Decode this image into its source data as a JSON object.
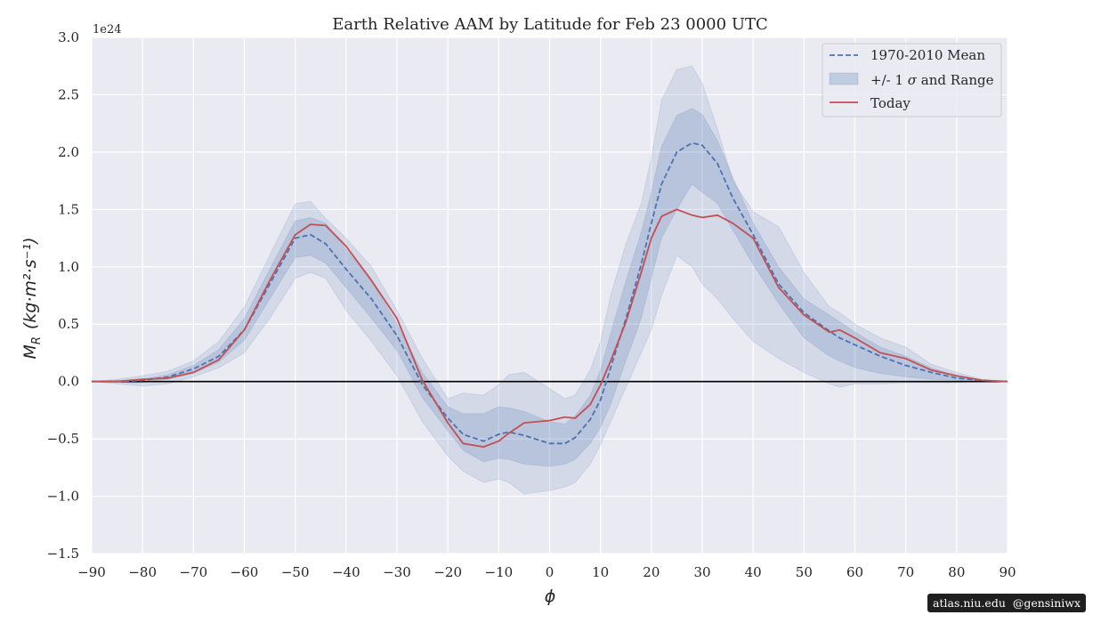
{
  "chart_data": {
    "type": "line",
    "title": "Earth Relative AAM by Latitude for Feb 23 0000 UTC",
    "xlabel": "ϕ",
    "ylabel_main": "M",
    "ylabel_sub": "R",
    "ylabel_units": "(kg·m²·s⁻¹)",
    "y_offset_text": "1e24",
    "xlim": [
      -90,
      90
    ],
    "ylim": [
      -1.5,
      3.0
    ],
    "x_ticks": [
      -90,
      -80,
      -70,
      -60,
      -50,
      -40,
      -30,
      -20,
      -10,
      0,
      10,
      20,
      30,
      40,
      50,
      60,
      70,
      80,
      90
    ],
    "x_tick_labels": [
      "−90",
      "−80",
      "−70",
      "−60",
      "−50",
      "−40",
      "−30",
      "−20",
      "−10",
      "0",
      "10",
      "20",
      "30",
      "40",
      "50",
      "60",
      "70",
      "80",
      "90"
    ],
    "y_ticks": [
      -1.5,
      -1.0,
      -0.5,
      0.0,
      0.5,
      1.0,
      1.5,
      2.0,
      2.5,
      3.0
    ],
    "y_tick_labels": [
      "−1.5",
      "−1.0",
      "−0.5",
      "0.0",
      "0.5",
      "1.0",
      "1.5",
      "2.0",
      "2.5",
      "3.0"
    ],
    "grid": true,
    "zero_line": true,
    "legend_position": "upper right",
    "legend": [
      {
        "label": "1970-2010 Mean",
        "style": "dashed-line",
        "color": "#4c72b0"
      },
      {
        "label_pre": "+/- 1 ",
        "label_sigma": "σ",
        "label_post": " and Range",
        "style": "band",
        "color": "#4c72b0"
      },
      {
        "label": "Today",
        "style": "solid-line",
        "color": "#c44e52"
      }
    ],
    "x": [
      -90,
      -85,
      -80,
      -75,
      -70,
      -65,
      -60,
      -55,
      -50,
      -47,
      -44,
      -40,
      -35,
      -30,
      -25,
      -20,
      -17,
      -13,
      -10,
      -8,
      -5,
      0,
      3,
      5,
      8,
      10,
      12,
      15,
      18,
      20,
      22,
      25,
      28,
      30,
      33,
      36,
      40,
      45,
      50,
      55,
      57,
      60,
      65,
      70,
      75,
      80,
      85,
      90
    ],
    "series": [
      {
        "name": "1970-2010 Mean",
        "style": "dashed",
        "color": "#4c72b0",
        "values": [
          0.0,
          0.0,
          0.01,
          0.04,
          0.11,
          0.22,
          0.45,
          0.85,
          1.25,
          1.28,
          1.2,
          0.98,
          0.72,
          0.4,
          -0.03,
          -0.32,
          -0.46,
          -0.52,
          -0.46,
          -0.44,
          -0.47,
          -0.54,
          -0.54,
          -0.49,
          -0.33,
          -0.16,
          0.12,
          0.55,
          1.02,
          1.38,
          1.72,
          2.0,
          2.08,
          2.06,
          1.9,
          1.6,
          1.28,
          0.85,
          0.6,
          0.44,
          0.38,
          0.32,
          0.22,
          0.14,
          0.08,
          0.03,
          0.01,
          0.0
        ]
      },
      {
        "name": "Today",
        "style": "solid",
        "color": "#c44e52",
        "values": [
          0.0,
          0.0,
          0.02,
          0.03,
          0.08,
          0.19,
          0.45,
          0.88,
          1.28,
          1.37,
          1.36,
          1.18,
          0.88,
          0.55,
          0.01,
          -0.36,
          -0.54,
          -0.57,
          -0.52,
          -0.45,
          -0.36,
          -0.34,
          -0.31,
          -0.32,
          -0.2,
          -0.03,
          0.18,
          0.52,
          0.95,
          1.25,
          1.44,
          1.5,
          1.45,
          1.43,
          1.45,
          1.38,
          1.25,
          0.82,
          0.58,
          0.43,
          0.45,
          0.38,
          0.25,
          0.2,
          0.1,
          0.05,
          0.01,
          0.0
        ]
      }
    ],
    "bands": [
      {
        "name": "range",
        "color": "#4c72b0",
        "opacity": 0.14,
        "upper": [
          0.0,
          0.02,
          0.05,
          0.09,
          0.18,
          0.35,
          0.65,
          1.1,
          1.55,
          1.57,
          1.42,
          1.25,
          1.0,
          0.62,
          0.2,
          -0.15,
          -0.1,
          -0.12,
          -0.03,
          0.06,
          0.08,
          -0.06,
          -0.15,
          -0.12,
          0.1,
          0.35,
          0.75,
          1.2,
          1.55,
          1.95,
          2.45,
          2.72,
          2.75,
          2.6,
          2.2,
          1.75,
          1.48,
          1.35,
          0.95,
          0.65,
          0.6,
          0.5,
          0.38,
          0.3,
          0.15,
          0.08,
          0.02,
          0.0
        ],
        "lower": [
          0.0,
          -0.02,
          -0.04,
          -0.02,
          0.04,
          0.12,
          0.25,
          0.55,
          0.9,
          0.95,
          0.9,
          0.62,
          0.35,
          0.05,
          -0.35,
          -0.65,
          -0.78,
          -0.88,
          -0.85,
          -0.88,
          -0.98,
          -0.95,
          -0.92,
          -0.88,
          -0.72,
          -0.55,
          -0.35,
          -0.05,
          0.25,
          0.45,
          0.75,
          1.1,
          1.0,
          0.85,
          0.72,
          0.55,
          0.35,
          0.2,
          0.08,
          -0.02,
          -0.05,
          -0.02,
          -0.02,
          -0.01,
          -0.01,
          -0.01,
          0.0,
          0.0
        ]
      },
      {
        "name": "+/- 1 sigma",
        "color": "#4c72b0",
        "opacity": 0.2,
        "upper": [
          0.0,
          0.01,
          0.02,
          0.06,
          0.14,
          0.28,
          0.55,
          0.98,
          1.4,
          1.43,
          1.38,
          1.15,
          0.88,
          0.5,
          0.08,
          -0.22,
          -0.28,
          -0.28,
          -0.22,
          -0.23,
          -0.26,
          -0.35,
          -0.37,
          -0.3,
          -0.12,
          0.1,
          0.42,
          0.88,
          1.3,
          1.65,
          2.05,
          2.32,
          2.38,
          2.33,
          2.1,
          1.78,
          1.38,
          1.0,
          0.72,
          0.58,
          0.52,
          0.43,
          0.3,
          0.22,
          0.12,
          0.05,
          0.01,
          0.0
        ]
      },
      {
        "name": "+/- 1 sigma lower",
        "color": "#4c72b0",
        "opacity": 0.2,
        "values": [
          0.0,
          -0.01,
          -0.01,
          0.02,
          0.07,
          0.17,
          0.36,
          0.72,
          1.08,
          1.1,
          1.03,
          0.82,
          0.55,
          0.27,
          -0.14,
          -0.43,
          -0.6,
          -0.7,
          -0.67,
          -0.68,
          -0.72,
          -0.74,
          -0.72,
          -0.68,
          -0.54,
          -0.4,
          -0.2,
          0.18,
          0.55,
          0.9,
          1.25,
          1.5,
          1.72,
          1.65,
          1.55,
          1.32,
          1.02,
          0.68,
          0.38,
          0.22,
          0.18,
          0.12,
          0.07,
          0.04,
          0.02,
          0.01,
          0.0,
          0.0
        ]
      }
    ]
  },
  "watermark": {
    "site": "atlas.niu.edu",
    "handle": "@gensiniwx"
  }
}
